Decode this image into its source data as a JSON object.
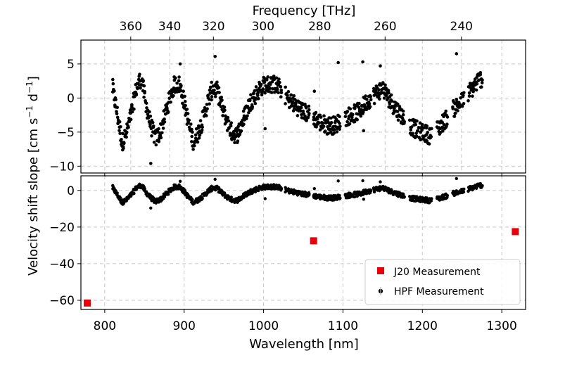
{
  "chart_data": {
    "type": "scatter",
    "title": "",
    "ylabel": "Velocity shift slope [cm s$^{-1}$ d$^{-1}$]",
    "ylabel_parts": [
      "Velocity shift slope [cm s",
      "−1",
      " d",
      "−1",
      "]"
    ],
    "xlabel": "Wavelength [nm]",
    "top_axis": {
      "label": "Frequency [THz]",
      "ticks": [
        360,
        340,
        320,
        300,
        280,
        260,
        240
      ],
      "tick_labels": [
        "360",
        "340",
        "320",
        "300",
        "280",
        "260",
        "240"
      ]
    },
    "xlim": [
      770,
      1330
    ],
    "x_ticks": [
      800,
      900,
      1000,
      1100,
      1200,
      1300
    ],
    "x_tick_labels": [
      "800",
      "900",
      "1000",
      "1100",
      "1200",
      "1300"
    ],
    "panels": [
      {
        "name": "top",
        "ylim": [
          -11,
          8.5
        ],
        "y_ticks": [
          5,
          0,
          -5,
          -10
        ],
        "y_tick_labels": [
          "5",
          "0",
          "−5",
          "−10"
        ]
      },
      {
        "name": "bottom",
        "ylim": [
          -65,
          8
        ],
        "y_ticks": [
          0,
          -20,
          -40,
          -60
        ],
        "y_tick_labels": [
          "0",
          "−20",
          "−40",
          "−60"
        ]
      }
    ],
    "series": [
      {
        "name": "J20 Measurement",
        "marker": "square",
        "color": "#e8000b",
        "points": [
          [
            778,
            -61.5
          ],
          [
            1063,
            -27.5
          ],
          [
            1317,
            -22.5
          ]
        ]
      },
      {
        "name": "HPF Measurement",
        "marker": "circle",
        "color": "#000000",
        "trend_knots": [
          [
            810,
            1.5
          ],
          [
            816,
            -2.5
          ],
          [
            822,
            -6.5
          ],
          [
            828,
            -5.0
          ],
          [
            834,
            -2.0
          ],
          [
            840,
            1.5
          ],
          [
            846,
            3.0
          ],
          [
            852,
            -1.0
          ],
          [
            858,
            -4.0
          ],
          [
            864,
            -6.0
          ],
          [
            870,
            -5.0
          ],
          [
            876,
            -2.5
          ],
          [
            882,
            0.0
          ],
          [
            888,
            2.0
          ],
          [
            894,
            2.0
          ],
          [
            900,
            -0.5
          ],
          [
            906,
            -4.0
          ],
          [
            912,
            -6.5
          ],
          [
            918,
            -5.0
          ],
          [
            924,
            -3.0
          ],
          [
            930,
            -0.5
          ],
          [
            936,
            1.5
          ],
          [
            942,
            1.0
          ],
          [
            948,
            -1.5
          ],
          [
            954,
            -3.5
          ],
          [
            960,
            -5.0
          ],
          [
            966,
            -5.5
          ],
          [
            972,
            -4.0
          ],
          [
            978,
            -2.0
          ],
          [
            984,
            -0.5
          ],
          [
            990,
            0.5
          ],
          [
            996,
            1.5
          ],
          [
            1002,
            2.0
          ],
          [
            1008,
            2.0
          ],
          [
            1014,
            2.0
          ],
          [
            1020,
            1.5
          ],
          [
            1030,
            0.0
          ],
          [
            1040,
            -1.0
          ],
          [
            1050,
            -2.0
          ],
          [
            1060,
            -2.5
          ],
          [
            1070,
            -3.5
          ],
          [
            1080,
            -4.0
          ],
          [
            1090,
            -4.0
          ],
          [
            1100,
            -3.0
          ],
          [
            1110,
            -2.5
          ],
          [
            1120,
            -2.0
          ],
          [
            1130,
            -0.5
          ],
          [
            1140,
            0.5
          ],
          [
            1150,
            1.5
          ],
          [
            1160,
            -0.5
          ],
          [
            1170,
            -2.0
          ],
          [
            1180,
            -3.5
          ],
          [
            1190,
            -4.5
          ],
          [
            1200,
            -5.0
          ],
          [
            1210,
            -5.5
          ],
          [
            1220,
            -4.5
          ],
          [
            1230,
            -3.0
          ],
          [
            1240,
            -1.5
          ],
          [
            1250,
            -0.5
          ],
          [
            1260,
            1.0
          ],
          [
            1270,
            2.5
          ],
          [
            1276,
            3.0
          ]
        ],
        "gaps": [
          [
            1023,
            1027
          ],
          [
            1058,
            1062
          ],
          [
            1097,
            1103
          ],
          [
            1135,
            1138
          ],
          [
            1178,
            1184
          ],
          [
            1212,
            1218
          ],
          [
            1232,
            1238
          ],
          [
            1252,
            1258
          ]
        ],
        "scatter_amplitude": 1.3,
        "outliers": [
          [
            858,
            -9.6
          ],
          [
            895,
            5.0
          ],
          [
            939,
            6.1
          ],
          [
            1002,
            -4.5
          ],
          [
            1064,
            1.0
          ],
          [
            1094,
            5.2
          ],
          [
            1125,
            5.3
          ],
          [
            1147,
            4.7
          ],
          [
            1243,
            6.5
          ],
          [
            1126,
            -4.8
          ]
        ]
      }
    ],
    "legend": {
      "position": "lower-right",
      "entries": [
        "J20 Measurement",
        "HPF Measurement"
      ]
    },
    "grid": true
  }
}
